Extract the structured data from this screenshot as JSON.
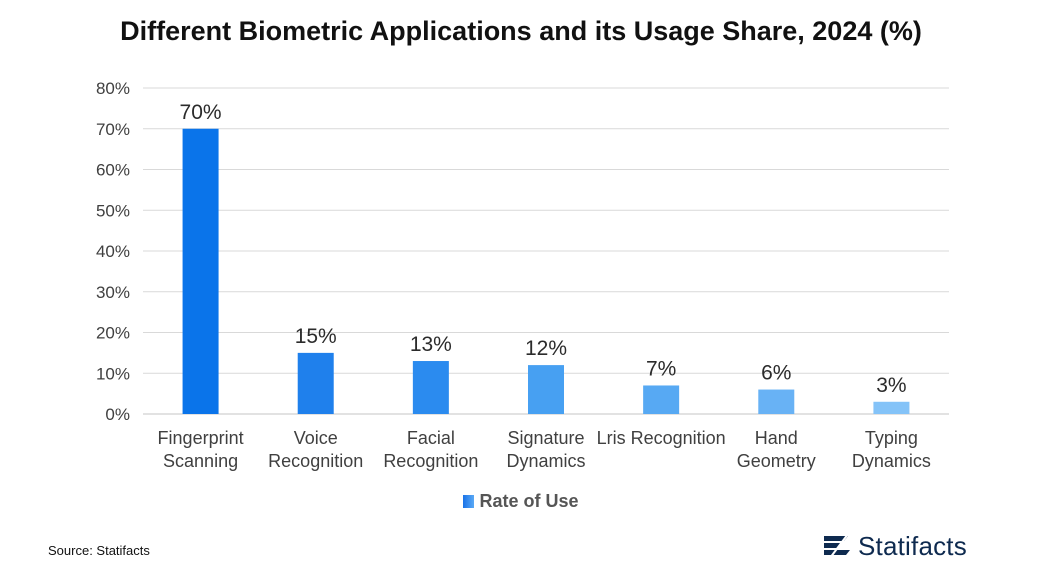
{
  "title": "Different Biometric Applications and its Usage Share, 2024 (%)",
  "source": "Source: Statifacts",
  "brand": {
    "name": "Statifacts",
    "icon": "statifacts-logo-icon"
  },
  "colors": {
    "bars": [
      "#0a74ea",
      "#1f80ec",
      "#2b8bef",
      "#47a0f2",
      "#57a9f3",
      "#68b2f5",
      "#84c3f8"
    ],
    "grid": "#d9d9d9",
    "axis": "#c4c4c4",
    "text": "#404040"
  },
  "chart_data": {
    "type": "bar",
    "title": "Different Biometric Applications and its Usage Share, 2024 (%)",
    "categories": [
      [
        "Fingerprint",
        "Scanning"
      ],
      [
        "Voice",
        "Recognition"
      ],
      [
        "Facial",
        "Recognition"
      ],
      [
        "Signature",
        "Dynamics"
      ],
      [
        "Lris Recognition"
      ],
      [
        "Hand",
        "Geometry"
      ],
      [
        "Typing",
        "Dynamics"
      ]
    ],
    "series": [
      {
        "name": "Rate of Use",
        "values": [
          70,
          15,
          13,
          12,
          7,
          6,
          3
        ]
      }
    ],
    "data_labels": [
      "70%",
      "15%",
      "13%",
      "12%",
      "7%",
      "6%",
      "3%"
    ],
    "ylim": [
      0,
      80
    ],
    "yticks": [
      0,
      10,
      20,
      30,
      40,
      50,
      60,
      70,
      80
    ],
    "ytick_labels": [
      "0%",
      "10%",
      "20%",
      "30%",
      "40%",
      "50%",
      "60%",
      "70%",
      "80%"
    ],
    "grid": true,
    "legend": "bottom-center"
  }
}
